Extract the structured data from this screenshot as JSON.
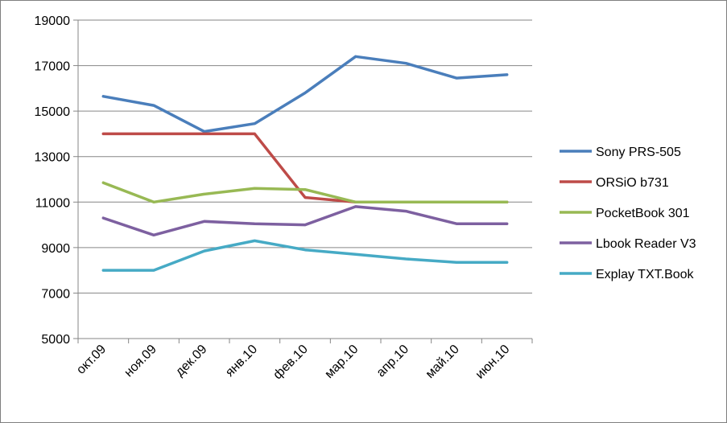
{
  "chart_data": {
    "type": "line",
    "title": "",
    "xlabel": "",
    "ylabel": "",
    "categories": [
      "окт.09",
      "ноя.09",
      "дек.09",
      "янв.10",
      "фев.10",
      "мар.10",
      "апр.10",
      "май.10",
      "июн.10"
    ],
    "ylim": [
      5000,
      19000
    ],
    "yticks": [
      5000,
      7000,
      9000,
      11000,
      13000,
      15000,
      17000,
      19000
    ],
    "grid": "horizontal major gridlines",
    "legend_position": "right",
    "series": [
      {
        "name": "Sony PRS-505",
        "color": "#4a7ebb",
        "values": [
          15650,
          15250,
          14100,
          14450,
          15800,
          17400,
          17100,
          16450,
          16600
        ]
      },
      {
        "name": "ORSiO b731",
        "color": "#be4b48",
        "values": [
          14000,
          14000,
          14000,
          14000,
          11200,
          11000,
          11000,
          11000,
          11000
        ]
      },
      {
        "name": "PocketBook 301",
        "color": "#98b954",
        "values": [
          11850,
          11000,
          11350,
          11600,
          11550,
          11000,
          11000,
          11000,
          11000
        ]
      },
      {
        "name": "Lbook Reader V3",
        "color": "#7d60a0",
        "values": [
          10300,
          9550,
          10150,
          10050,
          10000,
          10800,
          10600,
          10050,
          10050
        ]
      },
      {
        "name": "Explay TXT.Book",
        "color": "#46aac5",
        "values": [
          8000,
          8000,
          8850,
          9300,
          8900,
          8700,
          8500,
          8350,
          8350
        ]
      }
    ]
  }
}
